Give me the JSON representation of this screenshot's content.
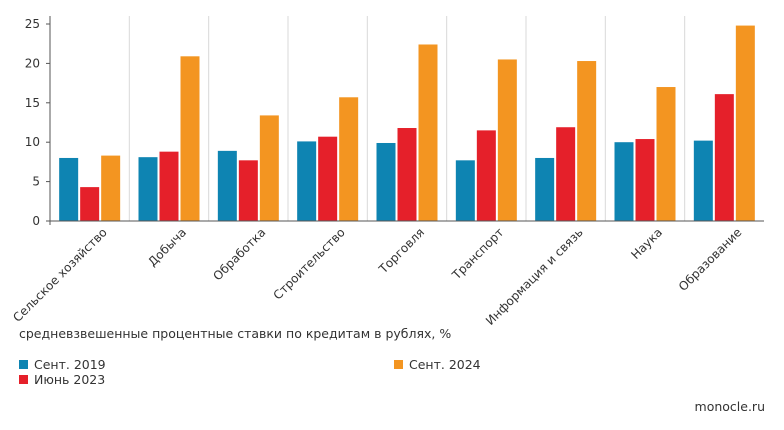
{
  "chart_data": {
    "type": "bar",
    "categories": [
      "Сельское хозяйство",
      "Добыча",
      "Обработка",
      "Строительство",
      "Торговля",
      "Транспорт",
      "Информация и связь",
      "Наука",
      "Образование"
    ],
    "series": [
      {
        "name": "Сент. 2019",
        "color": "#0e84b2",
        "values": [
          8.0,
          8.1,
          8.9,
          10.1,
          9.9,
          7.7,
          8.0,
          10.0,
          10.2
        ]
      },
      {
        "name": "Июнь 2023",
        "color": "#e5202a",
        "values": [
          4.3,
          8.8,
          7.7,
          10.7,
          11.8,
          11.5,
          11.9,
          10.4,
          16.1
        ]
      },
      {
        "name": "Сент. 2024",
        "color": "#f39521",
        "values": [
          8.3,
          20.9,
          13.4,
          15.7,
          22.4,
          20.5,
          20.3,
          17.0,
          24.8
        ]
      }
    ],
    "ylim": [
      0,
      25
    ],
    "yticks": [
      0,
      5,
      10,
      15,
      20,
      25
    ],
    "grid": "vertical separators between categories",
    "legend_position": "bottom-left",
    "subtitle": "средневзвешенные процентные ставки по кредитам в рублях, %"
  },
  "source": "monocle.ru"
}
